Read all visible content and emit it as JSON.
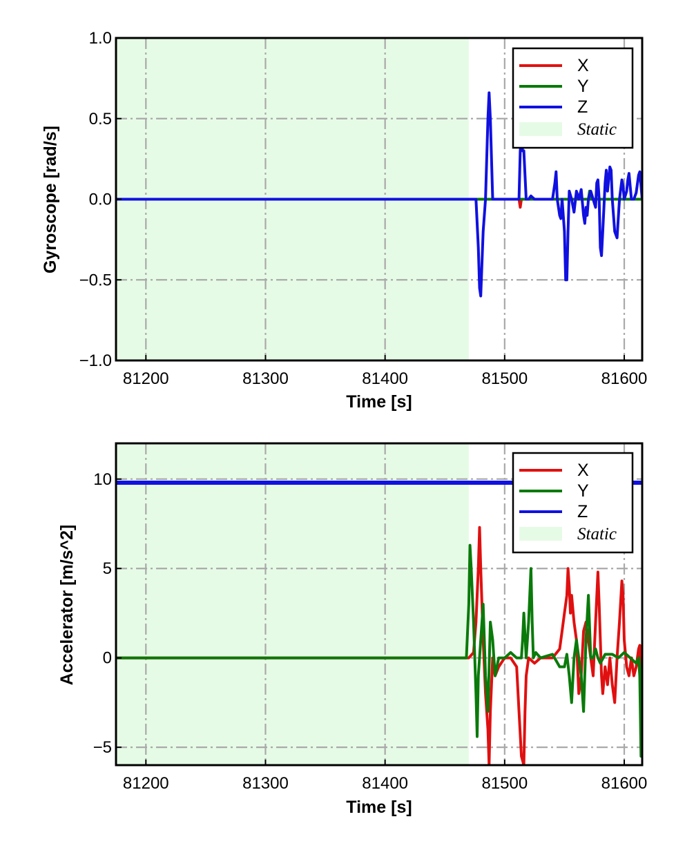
{
  "colors": {
    "X": "#e01010",
    "Y": "#0a7a0a",
    "Z": "#1010e0",
    "static": "#e6fbe6",
    "grid": "#a9a9a9"
  },
  "chart_data": [
    {
      "type": "line",
      "ylabel": "Gyroscope [rad/s]",
      "xlabel": "Time [s]",
      "xlim": [
        81175,
        81615
      ],
      "ylim": [
        -1.0,
        1.0
      ],
      "xticks": [
        81200,
        81300,
        81400,
        81500,
        81600
      ],
      "xtick_labels": [
        "81200",
        "81300",
        "81400",
        "81500",
        "81600"
      ],
      "yticks": [
        -1.0,
        -0.5,
        0.0,
        0.5,
        1.0
      ],
      "ytick_labels": [
        "−1.0",
        "−0.5",
        "0.0",
        "0.5",
        "1.0"
      ],
      "grid": true,
      "legend_position": "top-right",
      "static_region": [
        81175,
        81470
      ],
      "legend": {
        "x": "X",
        "y": "Y",
        "z": "Z",
        "static": "Static"
      },
      "series": [
        {
          "name": "X",
          "color": "#e01010",
          "x": [
            81175,
            81470,
            81512,
            81513,
            81514,
            81515,
            81520,
            81615
          ],
          "y": [
            0,
            0,
            0,
            -0.05,
            0,
            0,
            0,
            0
          ]
        },
        {
          "name": "Y",
          "color": "#0a7a0a",
          "x": [
            81175,
            81470,
            81565,
            81570,
            81571,
            81572,
            81575,
            81615
          ],
          "y": [
            0,
            0,
            0,
            0,
            0.05,
            0,
            0,
            0
          ]
        },
        {
          "name": "Z",
          "color": "#1010e0",
          "x": [
            81175,
            81470,
            81476,
            81478,
            81479,
            81480,
            81482,
            81484,
            81486,
            81487,
            81488,
            81490,
            81495,
            81512,
            81513,
            81514,
            81515,
            81516,
            81518,
            81520,
            81522,
            81525,
            81530,
            81540,
            81542,
            81543,
            81544,
            81546,
            81547,
            81548,
            81550,
            81551,
            81552,
            81553,
            81554,
            81556,
            81558,
            81560,
            81562,
            81564,
            81566,
            81567,
            81568,
            81569,
            81570,
            81572,
            81574,
            81576,
            81577,
            81578,
            81579,
            81580,
            81581,
            81582,
            81584,
            81585,
            81586,
            81588,
            81589,
            81590,
            81592,
            81594,
            81596,
            81598,
            81599,
            81600,
            81602,
            81603,
            81604,
            81606,
            81608,
            81610,
            81612,
            81613,
            81615
          ],
          "y": [
            0,
            0,
            0,
            -0.3,
            -0.55,
            -0.6,
            -0.2,
            0,
            0.5,
            0.66,
            0.5,
            0,
            0,
            0,
            0.3,
            0.38,
            0.3,
            0.3,
            0,
            0,
            0.02,
            0,
            0,
            0,
            0.1,
            0.17,
            0,
            -0.1,
            -0.12,
            0,
            -0.2,
            -0.5,
            -0.5,
            -0.2,
            0.05,
            0,
            -0.08,
            0.05,
            0,
            0.06,
            -0.1,
            -0.15,
            -0.05,
            -0.1,
            0,
            0.05,
            0,
            -0.05,
            0.1,
            0.12,
            0,
            -0.3,
            -0.35,
            -0.2,
            0.1,
            0.18,
            0.05,
            0.2,
            0.18,
            0,
            -0.2,
            -0.24,
            0,
            0.12,
            0.08,
            0,
            0.05,
            0.12,
            0.16,
            0,
            0,
            0.04,
            0.15,
            0.17,
            0
          ]
        }
      ]
    },
    {
      "type": "line",
      "ylabel": "Accelerator [m/s^2]",
      "xlabel": "Time [s]",
      "xlim": [
        81175,
        81615
      ],
      "ylim": [
        -6,
        12
      ],
      "xticks": [
        81200,
        81300,
        81400,
        81500,
        81600
      ],
      "xtick_labels": [
        "81200",
        "81300",
        "81400",
        "81500",
        "81600"
      ],
      "yticks": [
        -5,
        0,
        5,
        10
      ],
      "ytick_labels": [
        "−5",
        "0",
        "5",
        "10"
      ],
      "grid": true,
      "legend_position": "top-right",
      "static_region": [
        81175,
        81470
      ],
      "legend": {
        "x": "X",
        "y": "Y",
        "z": "Z",
        "static": "Static"
      },
      "series": [
        {
          "name": "X",
          "color": "#e01010",
          "x": [
            81175,
            81470,
            81474,
            81476,
            81478,
            81479,
            81480,
            81482,
            81484,
            81486,
            81487,
            81488,
            81490,
            81492,
            81495,
            81500,
            81505,
            81510,
            81512,
            81514,
            81516,
            81517,
            81518,
            81520,
            81525,
            81530,
            81540,
            81546,
            81548,
            81550,
            81552,
            81553,
            81554,
            81555,
            81556,
            81558,
            81560,
            81562,
            81564,
            81566,
            81568,
            81570,
            81572,
            81574,
            81576,
            81578,
            81579,
            81580,
            81581,
            81582,
            81584,
            81586,
            81588,
            81590,
            81592,
            81594,
            81596,
            81598,
            81599,
            81600,
            81602,
            81604,
            81606,
            81608,
            81610,
            81612,
            81613,
            81614,
            81615
          ],
          "y": [
            0,
            0,
            0.3,
            2,
            5,
            7.3,
            5,
            1,
            -2,
            -4,
            -6,
            -3,
            0,
            -1,
            -0.5,
            0,
            0,
            -0.5,
            -3,
            -5.5,
            -6,
            -3,
            -1,
            0,
            -0.3,
            0,
            0,
            0.5,
            1.5,
            2.5,
            3.5,
            5,
            4,
            2.5,
            3.5,
            2,
            1,
            -2,
            -1,
            1.5,
            2,
            1,
            0,
            -1,
            2,
            4.8,
            3,
            1,
            -1,
            -2,
            -0.5,
            -1.5,
            0,
            -1.5,
            -2.5,
            0,
            2,
            4.3,
            3.5,
            1,
            -0.5,
            -1,
            0,
            -1,
            -0.5,
            0.5,
            0.7,
            -2,
            -5
          ]
        },
        {
          "name": "Y",
          "color": "#0a7a0a",
          "x": [
            81175,
            81468,
            81470,
            81471,
            81472,
            81474,
            81476,
            81477,
            81478,
            81480,
            81482,
            81484,
            81486,
            81488,
            81490,
            81492,
            81495,
            81500,
            81505,
            81510,
            81514,
            81515,
            81516,
            81518,
            81520,
            81522,
            81523,
            81524,
            81526,
            81530,
            81540,
            81546,
            81548,
            81550,
            81552,
            81554,
            81556,
            81558,
            81560,
            81562,
            81564,
            81566,
            81568,
            81570,
            81572,
            81574,
            81576,
            81578,
            81580,
            81584,
            81590,
            81595,
            81600,
            81605,
            81610,
            81612,
            81613,
            81614,
            81615
          ],
          "y": [
            0,
            0,
            3,
            6.3,
            5,
            2,
            -2,
            -4.4,
            -1,
            1,
            3,
            -1,
            -3,
            2,
            1,
            -1,
            0,
            0,
            0.3,
            0,
            0,
            1,
            2.5,
            0,
            2,
            5,
            2,
            0,
            0.3,
            0,
            0.2,
            -0.5,
            -0.5,
            -0.5,
            0.2,
            -1,
            -2.5,
            0,
            1,
            0,
            -1,
            -3,
            1,
            3.5,
            0,
            0,
            0.5,
            0,
            -0.3,
            0.2,
            0.2,
            0,
            0.3,
            0,
            -0.3,
            0,
            -1,
            -5.5,
            0
          ]
        },
        {
          "name": "Z",
          "color": "#1010e0",
          "x": [
            81175,
            81300,
            81400,
            81470,
            81500,
            81550,
            81600,
            81615
          ],
          "y": [
            9.8,
            9.8,
            9.8,
            9.8,
            9.8,
            9.8,
            9.8,
            9.8
          ]
        }
      ]
    }
  ]
}
